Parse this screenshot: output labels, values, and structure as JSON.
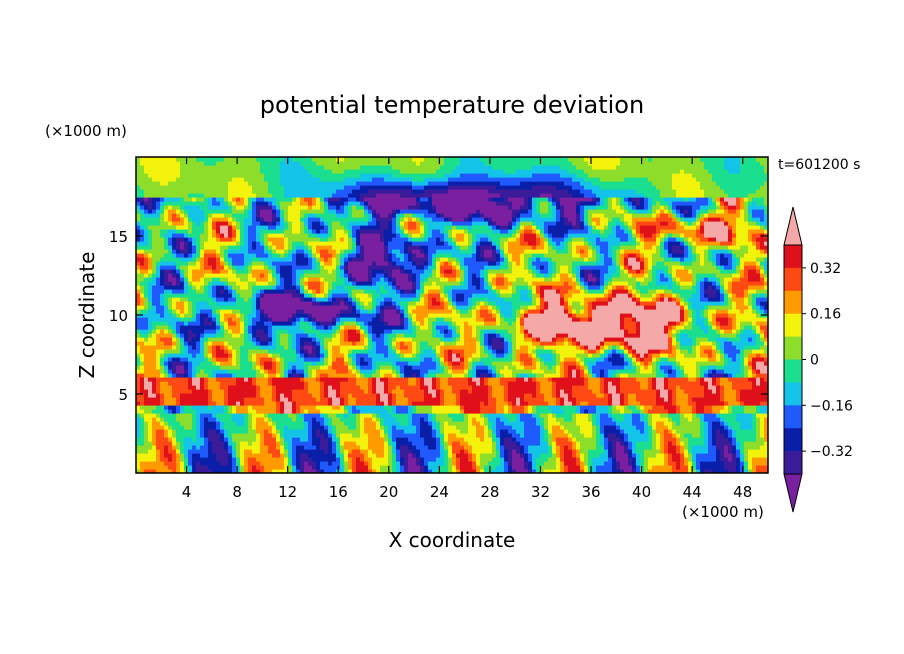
{
  "chart_data": {
    "type": "heatmap",
    "title": "potential temperature deviation",
    "time_label": "t=601200 s",
    "xlabel": "X coordinate",
    "ylabel": "Z coordinate",
    "x_units": "(×1000 m)",
    "y_units": "(×1000 m)",
    "xlim": [
      0,
      50
    ],
    "ylim": [
      0,
      20
    ],
    "x_ticks": [
      4,
      8,
      12,
      16,
      20,
      24,
      28,
      32,
      36,
      40,
      44,
      48
    ],
    "y_ticks": [
      5,
      10,
      15
    ],
    "colorbar": {
      "levels": [
        -0.4,
        -0.32,
        -0.24,
        -0.16,
        -0.08,
        0,
        0.08,
        0.16,
        0.24,
        0.32,
        0.4
      ],
      "tick_labels": [
        "0.32",
        "0.16",
        "0",
        "−0.16",
        "−0.32"
      ],
      "tick_values": [
        0.32,
        0.16,
        0,
        -0.16,
        -0.32
      ],
      "extend": "both",
      "colors": [
        "#7a1fa0",
        "#3a1c9a",
        "#0a1fa8",
        "#1f5aff",
        "#13c4e8",
        "#1adf8f",
        "#8cde2a",
        "#f2f20a",
        "#ff9a00",
        "#ff4a14",
        "#e0101a",
        "#f4a8a8"
      ]
    },
    "field_description": "upper troposphere multi-scale turbulent structures; strong warm layer near z≈4.5–5.5 km; alternating warm/cold convective columns below z≈4 km"
  }
}
